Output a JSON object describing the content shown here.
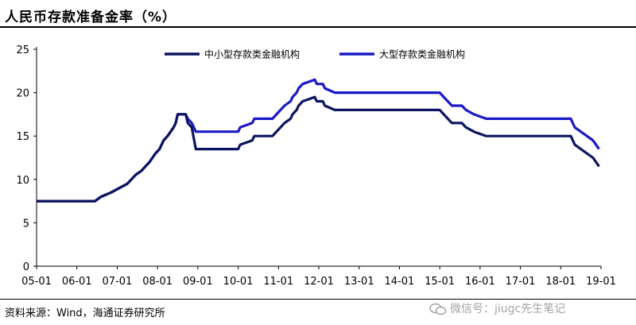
{
  "title": "人民币存款准备金率（%）",
  "source": "资料来源：Wind，海通证券研究所",
  "watermark": "微信号：jiugc先生笔记",
  "colors": {
    "small_medium": "#0c1460",
    "large": "#1a19c6",
    "axis": "#000000"
  },
  "chart_data": {
    "type": "line",
    "title": "",
    "xlabel": "",
    "ylabel": "",
    "ylim": [
      0,
      25
    ],
    "yticks": [
      0,
      5,
      10,
      15,
      20,
      25
    ],
    "xlim": [
      2005.0,
      2019.0
    ],
    "xticks": [
      "05-01",
      "06-01",
      "07-01",
      "08-01",
      "09-01",
      "10-01",
      "11-01",
      "12-01",
      "13-01",
      "14-01",
      "15-01",
      "16-01",
      "17-01",
      "18-01",
      "19-01"
    ],
    "grid": false,
    "legend_position": "top",
    "series": [
      {
        "name": "中小型存款类金融机构",
        "points": [
          [
            2005.0,
            7.5
          ],
          [
            2006.45,
            7.5
          ],
          [
            2006.6,
            8.0
          ],
          [
            2006.85,
            8.5
          ],
          [
            2007.05,
            9.0
          ],
          [
            2007.25,
            9.5
          ],
          [
            2007.35,
            10.0
          ],
          [
            2007.45,
            10.5
          ],
          [
            2007.6,
            11.0
          ],
          [
            2007.7,
            11.5
          ],
          [
            2007.8,
            12.0
          ],
          [
            2007.95,
            13.0
          ],
          [
            2008.05,
            13.5
          ],
          [
            2008.15,
            14.5
          ],
          [
            2008.25,
            15.0
          ],
          [
            2008.4,
            16.0
          ],
          [
            2008.45,
            16.5
          ],
          [
            2008.5,
            17.5
          ],
          [
            2008.7,
            17.5
          ],
          [
            2008.75,
            16.5
          ],
          [
            2008.85,
            16.0
          ],
          [
            2008.95,
            13.5
          ],
          [
            2010.0,
            13.5
          ],
          [
            2010.05,
            14.0
          ],
          [
            2010.35,
            14.5
          ],
          [
            2010.4,
            15.0
          ],
          [
            2010.85,
            15.0
          ],
          [
            2010.95,
            15.5
          ],
          [
            2011.05,
            16.0
          ],
          [
            2011.15,
            16.5
          ],
          [
            2011.3,
            17.0
          ],
          [
            2011.35,
            17.5
          ],
          [
            2011.45,
            18.0
          ],
          [
            2011.5,
            18.5
          ],
          [
            2011.6,
            19.0
          ],
          [
            2011.9,
            19.5
          ],
          [
            2011.95,
            19.0
          ],
          [
            2012.1,
            19.0
          ],
          [
            2012.15,
            18.5
          ],
          [
            2012.4,
            18.0
          ],
          [
            2015.0,
            18.0
          ],
          [
            2015.1,
            17.5
          ],
          [
            2015.3,
            16.5
          ],
          [
            2015.55,
            16.5
          ],
          [
            2015.65,
            16.0
          ],
          [
            2015.85,
            15.5
          ],
          [
            2016.15,
            15.0
          ],
          [
            2018.25,
            15.0
          ],
          [
            2018.35,
            14.0
          ],
          [
            2018.5,
            13.5
          ],
          [
            2018.8,
            12.5
          ],
          [
            2018.95,
            11.5
          ]
        ]
      },
      {
        "name": "大型存款类金融机构",
        "points": [
          [
            2005.0,
            7.5
          ],
          [
            2006.45,
            7.5
          ],
          [
            2006.6,
            8.0
          ],
          [
            2006.85,
            8.5
          ],
          [
            2007.05,
            9.0
          ],
          [
            2007.25,
            9.5
          ],
          [
            2007.35,
            10.0
          ],
          [
            2007.45,
            10.5
          ],
          [
            2007.6,
            11.0
          ],
          [
            2007.7,
            11.5
          ],
          [
            2007.8,
            12.0
          ],
          [
            2007.95,
            13.0
          ],
          [
            2008.05,
            13.5
          ],
          [
            2008.15,
            14.5
          ],
          [
            2008.25,
            15.0
          ],
          [
            2008.4,
            16.0
          ],
          [
            2008.45,
            16.5
          ],
          [
            2008.5,
            17.5
          ],
          [
            2008.7,
            17.5
          ],
          [
            2008.75,
            17.0
          ],
          [
            2008.85,
            16.5
          ],
          [
            2008.95,
            15.5
          ],
          [
            2010.0,
            15.5
          ],
          [
            2010.05,
            16.0
          ],
          [
            2010.35,
            16.5
          ],
          [
            2010.4,
            17.0
          ],
          [
            2010.85,
            17.0
          ],
          [
            2010.95,
            17.5
          ],
          [
            2011.05,
            18.0
          ],
          [
            2011.15,
            18.5
          ],
          [
            2011.3,
            19.0
          ],
          [
            2011.35,
            19.5
          ],
          [
            2011.45,
            20.0
          ],
          [
            2011.5,
            20.5
          ],
          [
            2011.6,
            21.0
          ],
          [
            2011.9,
            21.5
          ],
          [
            2011.95,
            21.0
          ],
          [
            2012.1,
            21.0
          ],
          [
            2012.15,
            20.5
          ],
          [
            2012.4,
            20.0
          ],
          [
            2015.0,
            20.0
          ],
          [
            2015.1,
            19.5
          ],
          [
            2015.3,
            18.5
          ],
          [
            2015.55,
            18.5
          ],
          [
            2015.65,
            18.0
          ],
          [
            2015.85,
            17.5
          ],
          [
            2016.15,
            17.0
          ],
          [
            2018.25,
            17.0
          ],
          [
            2018.35,
            16.0
          ],
          [
            2018.5,
            15.5
          ],
          [
            2018.8,
            14.5
          ],
          [
            2018.95,
            13.5
          ]
        ]
      }
    ]
  }
}
